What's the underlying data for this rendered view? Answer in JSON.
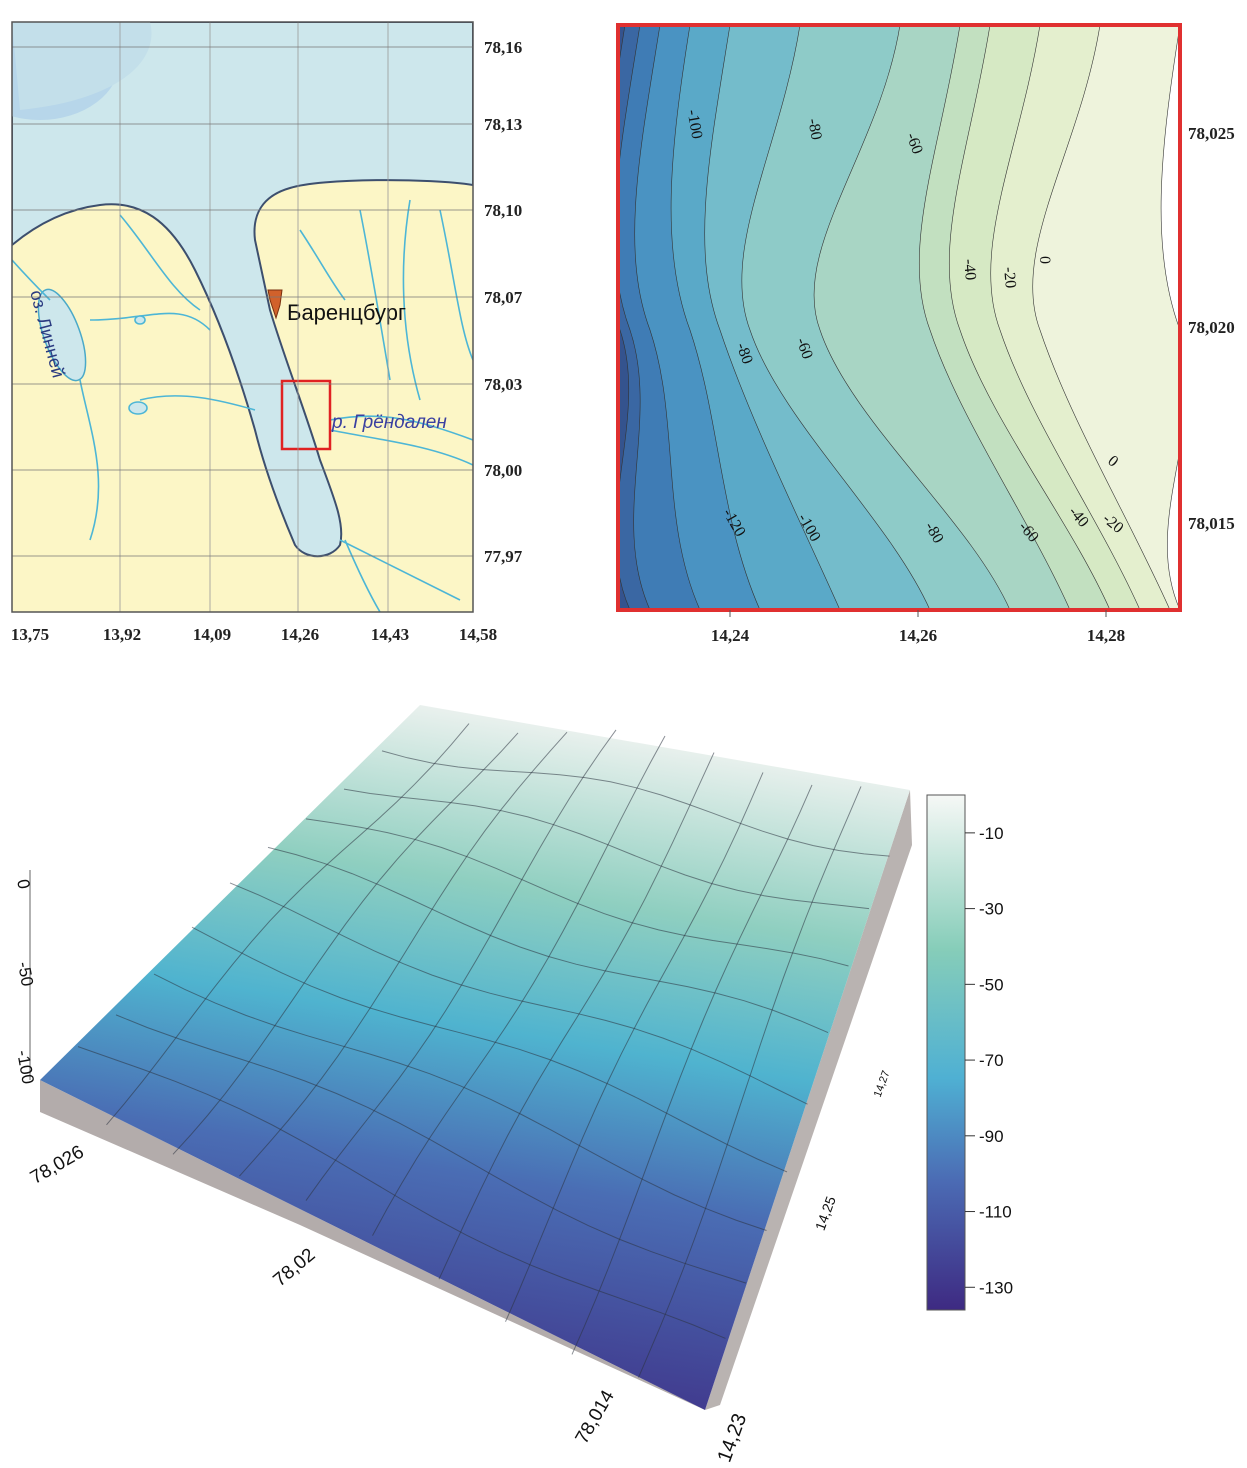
{
  "map": {
    "x_ticks": [
      "13,75",
      "13,92",
      "14,09",
      "14,26",
      "14,43",
      "14,58"
    ],
    "y_ticks": [
      "78,16",
      "78,13",
      "78,10",
      "78,07",
      "78,03",
      "78,00",
      "77,97"
    ],
    "labels": {
      "town": "Баренцбург",
      "lake": "оз. Линней",
      "river": "р. Грёндален"
    }
  },
  "contour": {
    "x_ticks": [
      "14,24",
      "14,26",
      "14,28"
    ],
    "y_ticks": [
      "78,025",
      "78,020",
      "78,015"
    ],
    "contour_labels": [
      "-100",
      "-80",
      "-60",
      "-40",
      "-20",
      "0",
      "-80",
      "-60",
      "-120",
      "-100",
      "-80",
      "-60",
      "-40",
      "-20",
      "0"
    ]
  },
  "surface": {
    "z_ticks": [
      "0",
      "-50",
      "-100"
    ],
    "x_ticks": [
      "78,026",
      "78,02",
      "78,014"
    ],
    "y_ticks": [
      "14,23",
      "14,25",
      "14,27"
    ],
    "colorbar": {
      "range": [
        0,
        -136
      ],
      "ticks": [
        -10,
        -30,
        -50,
        -70,
        -90,
        -110,
        -130
      ]
    }
  }
}
